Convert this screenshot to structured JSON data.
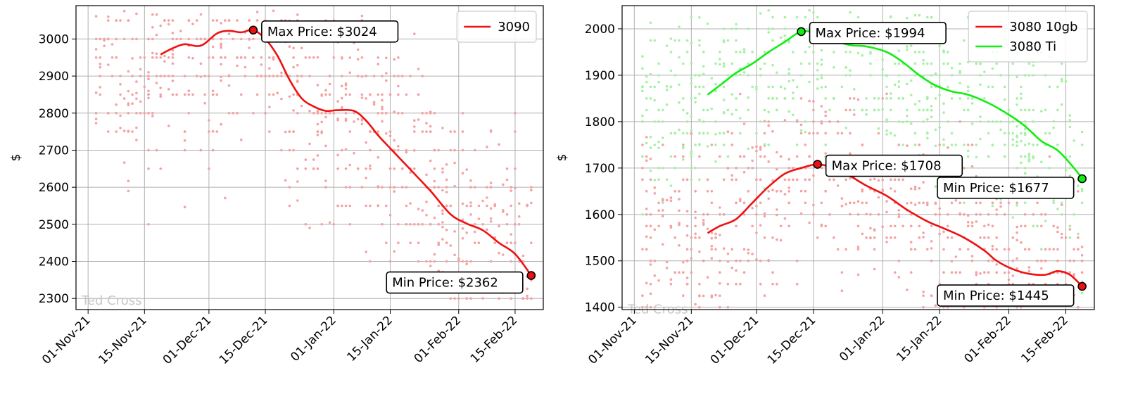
{
  "watermark": "Ted Cross",
  "colors": {
    "red_line": "#ee1111",
    "red_scatter": "#f4a3a3",
    "green_line": "#11ee11",
    "green_scatter": "#a7f0a7",
    "grid": "#b0b0b0"
  },
  "chart_data": [
    {
      "type": "line",
      "xlabel": "",
      "ylabel": "$",
      "xlim": [
        "2021-10-29",
        "2022-02-22"
      ],
      "ylim": [
        2270,
        3090
      ],
      "x_ticks": [
        "2021-11-01",
        "2021-11-15",
        "2021-12-01",
        "2021-12-15",
        "2022-01-01",
        "2022-01-15",
        "2022-02-01",
        "2022-02-15"
      ],
      "x_tick_labels": [
        "01-Nov-21",
        "15-Nov-21",
        "01-Dec-21",
        "15-Dec-21",
        "01-Jan-22",
        "15-Jan-22",
        "01-Feb-22",
        "15-Feb-22"
      ],
      "y_ticks": [
        2300,
        2400,
        2500,
        2600,
        2700,
        2800,
        2900,
        3000
      ],
      "grid": true,
      "legend_position": "top-right",
      "series": [
        {
          "name": "3090",
          "color": "#ee1111",
          "scatter_color": "#f4a3a3",
          "scatter_range": [
            2290,
            3080
          ],
          "points": [
            [
              "2021-11-19",
              2958
            ],
            [
              "2021-11-22",
              2975
            ],
            [
              "2021-11-25",
              2986
            ],
            [
              "2021-11-29",
              2982
            ],
            [
              "2021-12-03",
              3015
            ],
            [
              "2021-12-06",
              3022
            ],
            [
              "2021-12-09",
              3018
            ],
            [
              "2021-12-12",
              3024
            ],
            [
              "2021-12-15",
              3000
            ],
            [
              "2021-12-18",
              2955
            ],
            [
              "2021-12-21",
              2890
            ],
            [
              "2021-12-24",
              2840
            ],
            [
              "2021-12-27",
              2818
            ],
            [
              "2021-12-30",
              2806
            ],
            [
              "2022-01-02",
              2808
            ],
            [
              "2022-01-06",
              2806
            ],
            [
              "2022-01-09",
              2780
            ],
            [
              "2022-01-12",
              2740
            ],
            [
              "2022-01-15",
              2705
            ],
            [
              "2022-01-20",
              2648
            ],
            [
              "2022-01-25",
              2590
            ],
            [
              "2022-01-30",
              2527
            ],
            [
              "2022-02-03",
              2502
            ],
            [
              "2022-02-07",
              2484
            ],
            [
              "2022-02-11",
              2450
            ],
            [
              "2022-02-15",
              2420
            ],
            [
              "2022-02-19",
              2362
            ]
          ]
        }
      ],
      "annotations": [
        {
          "text": "Max Price: $3024",
          "x": "2021-12-12",
          "y": 3024,
          "side": "right"
        },
        {
          "text": "Min Price: $2362",
          "x": "2022-02-19",
          "y": 2362,
          "side": "left"
        }
      ]
    },
    {
      "type": "line",
      "xlabel": "",
      "ylabel": "$",
      "xlim": [
        "2021-10-29",
        "2022-02-22"
      ],
      "ylim": [
        1395,
        2050
      ],
      "x_ticks": [
        "2021-11-01",
        "2021-11-15",
        "2021-12-01",
        "2021-12-15",
        "2022-01-01",
        "2022-01-15",
        "2022-02-01",
        "2022-02-15"
      ],
      "x_tick_labels": [
        "01-Nov-21",
        "15-Nov-21",
        "01-Dec-21",
        "15-Dec-21",
        "01-Jan-22",
        "15-Jan-22",
        "01-Feb-22",
        "15-Feb-22"
      ],
      "y_ticks": [
        1400,
        1500,
        1600,
        1700,
        1800,
        1900,
        2000
      ],
      "grid": true,
      "legend_position": "top-right",
      "series": [
        {
          "name": "3080 10gb",
          "color": "#ee1111",
          "scatter_color": "#f4a3a3",
          "scatter_range": [
            1400,
            1870
          ],
          "points": [
            [
              "2021-11-19",
              1560
            ],
            [
              "2021-11-22",
              1575
            ],
            [
              "2021-11-26",
              1590
            ],
            [
              "2021-11-30",
              1625
            ],
            [
              "2021-12-04",
              1660
            ],
            [
              "2021-12-08",
              1688
            ],
            [
              "2021-12-12",
              1700
            ],
            [
              "2021-12-16",
              1708
            ],
            [
              "2021-12-20",
              1700
            ],
            [
              "2021-12-24",
              1683
            ],
            [
              "2021-12-28",
              1662
            ],
            [
              "2022-01-02",
              1640
            ],
            [
              "2022-01-07",
              1610
            ],
            [
              "2022-01-12",
              1585
            ],
            [
              "2022-01-16",
              1570
            ],
            [
              "2022-01-21",
              1550
            ],
            [
              "2022-01-26",
              1522
            ],
            [
              "2022-01-29",
              1500
            ],
            [
              "2022-02-02",
              1482
            ],
            [
              "2022-02-06",
              1472
            ],
            [
              "2022-02-10",
              1470
            ],
            [
              "2022-02-13",
              1478
            ],
            [
              "2022-02-16",
              1470
            ],
            [
              "2022-02-19",
              1445
            ]
          ]
        },
        {
          "name": "3080 Ti",
          "color": "#11ee11",
          "scatter_color": "#a7f0a7",
          "scatter_range": [
            1420,
            2040
          ],
          "points": [
            [
              "2021-11-19",
              1858
            ],
            [
              "2021-11-22",
              1878
            ],
            [
              "2021-11-26",
              1905
            ],
            [
              "2021-11-30",
              1925
            ],
            [
              "2021-12-04",
              1950
            ],
            [
              "2021-12-08",
              1972
            ],
            [
              "2021-12-12",
              1994
            ],
            [
              "2021-12-16",
              1990
            ],
            [
              "2021-12-20",
              1975
            ],
            [
              "2021-12-24",
              1965
            ],
            [
              "2021-12-28",
              1962
            ],
            [
              "2022-01-02",
              1950
            ],
            [
              "2022-01-06",
              1928
            ],
            [
              "2022-01-10",
              1900
            ],
            [
              "2022-01-14",
              1878
            ],
            [
              "2022-01-18",
              1865
            ],
            [
              "2022-01-22",
              1858
            ],
            [
              "2022-01-27",
              1840
            ],
            [
              "2022-02-01",
              1815
            ],
            [
              "2022-02-05",
              1790
            ],
            [
              "2022-02-09",
              1758
            ],
            [
              "2022-02-13",
              1738
            ],
            [
              "2022-02-17",
              1700
            ],
            [
              "2022-02-19",
              1677
            ]
          ]
        }
      ],
      "annotations": [
        {
          "text": "Max Price: $1994",
          "x": "2021-12-12",
          "y": 1994,
          "side": "right"
        },
        {
          "text": "Max Price: $1708",
          "x": "2021-12-16",
          "y": 1708,
          "side": "right"
        },
        {
          "text": "Min Price: $1677",
          "x": "2022-02-19",
          "y": 1677,
          "side": "left-below"
        },
        {
          "text": "Min Price: $1445",
          "x": "2022-02-19",
          "y": 1445,
          "side": "left-below"
        }
      ]
    }
  ]
}
